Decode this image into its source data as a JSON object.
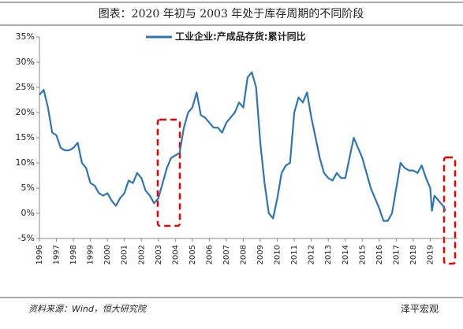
{
  "chart_data": {
    "type": "line",
    "title": "图表：2020 年初与 2003 年处于库存周期的不同阶段",
    "source": "资料来源：Wind，恒大研究院",
    "watermark": "泽平宏观",
    "legend": "top",
    "x": [
      1996,
      1996.25,
      1996.5,
      1996.75,
      1997,
      1997.25,
      1997.5,
      1997.75,
      1998,
      1998.25,
      1998.5,
      1998.75,
      1999,
      1999.25,
      1999.5,
      1999.75,
      2000,
      2000.25,
      2000.5,
      2000.75,
      2001,
      2001.25,
      2001.5,
      2001.75,
      2002,
      2002.25,
      2002.5,
      2002.75,
      2003,
      2003.25,
      2003.5,
      2003.75,
      2004,
      2004.25,
      2004.5,
      2004.75,
      2005,
      2005.25,
      2005.5,
      2005.75,
      2006,
      2006.25,
      2006.5,
      2006.75,
      2007,
      2007.25,
      2007.5,
      2007.75,
      2008,
      2008.25,
      2008.5,
      2008.75,
      2009,
      2009.25,
      2009.5,
      2009.75,
      2010,
      2010.25,
      2010.5,
      2010.75,
      2011,
      2011.25,
      2011.5,
      2011.75,
      2012,
      2012.25,
      2012.5,
      2012.75,
      2013,
      2013.25,
      2013.5,
      2013.75,
      2014,
      2014.25,
      2014.5,
      2014.75,
      2015,
      2015.25,
      2015.5,
      2015.75,
      2016,
      2016.25,
      2016.5,
      2016.75,
      2017,
      2017.25,
      2017.5,
      2017.75,
      2018,
      2018.25,
      2018.5,
      2018.75,
      2019,
      2019.1,
      2019.25,
      2019.5,
      2019.75,
      2019.9
    ],
    "series": [
      {
        "name": "工业企业:产成品存货:累计同比",
        "color": "#2e75b6",
        "values": [
          23.5,
          24.5,
          21,
          16,
          15.5,
          13,
          12.5,
          12.5,
          13,
          14,
          10,
          9,
          6,
          5.5,
          4,
          3.5,
          4,
          2.5,
          1.5,
          3,
          4,
          6.5,
          6,
          8,
          7,
          4.5,
          3.5,
          2,
          3,
          6,
          9,
          11,
          11.5,
          12,
          17,
          20,
          21,
          24,
          19.5,
          19,
          18,
          17,
          17,
          16,
          18,
          19,
          20,
          22,
          21,
          27,
          28,
          25,
          14,
          6,
          0,
          -1,
          3,
          8,
          9.5,
          10,
          20,
          23,
          22,
          24,
          19,
          15,
          11,
          8,
          7,
          6.5,
          8,
          7,
          7,
          11,
          15,
          13,
          11,
          8,
          5,
          3,
          1,
          -1.5,
          -1.5,
          0,
          5,
          10,
          9,
          8.5,
          8.5,
          8,
          9.5,
          7,
          5,
          0.5,
          3.5,
          2.5,
          1.5,
          0.5
        ]
      }
    ],
    "xlim": [
      1996,
      2020
    ],
    "xticks": [
      1996,
      1997,
      1998,
      1999,
      2000,
      2001,
      2002,
      2003,
      2004,
      2005,
      2006,
      2007,
      2008,
      2009,
      2010,
      2011,
      2012,
      2013,
      2014,
      2015,
      2016,
      2017,
      2018,
      2019
    ],
    "ylim": [
      -5,
      35
    ],
    "yticks": [
      {
        "value": -5,
        "label": "-5%"
      },
      {
        "value": 0,
        "label": "0%"
      },
      {
        "value": 5,
        "label": "5%"
      },
      {
        "value": 10,
        "label": "10%"
      },
      {
        "value": 15,
        "label": "15%"
      },
      {
        "value": 20,
        "label": "20%"
      },
      {
        "value": 25,
        "label": "25%"
      },
      {
        "value": 30,
        "label": "30%"
      },
      {
        "value": 35,
        "label": "35%"
      }
    ]
  }
}
